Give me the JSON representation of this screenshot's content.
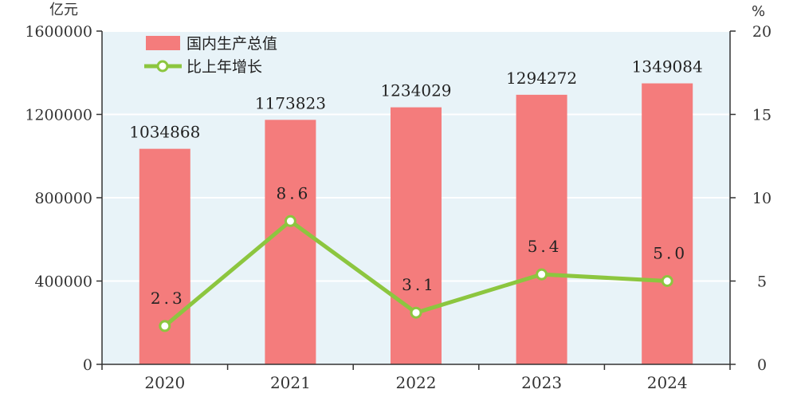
{
  "chart_data": {
    "type": "bar",
    "categories": [
      "2020",
      "2021",
      "2022",
      "2023",
      "2024"
    ],
    "series": [
      {
        "name": "国内生产总值",
        "type": "bar",
        "axis": "left",
        "values": [
          1034868,
          1173823,
          1234029,
          1294272,
          1349084
        ],
        "labels": [
          "1034868",
          "1173823",
          "1234029",
          "1294272",
          "1349084"
        ],
        "color": "#f47c7c"
      },
      {
        "name": "比上年增长",
        "type": "line",
        "axis": "right",
        "values": [
          2.3,
          8.6,
          3.1,
          5.4,
          5.0
        ],
        "labels": [
          "2.3",
          "8.6",
          "3.1",
          "5.4",
          "5.0"
        ],
        "color": "#8cc63f"
      }
    ],
    "left_axis": {
      "unit": "亿元",
      "ylim": [
        0,
        1600000
      ],
      "ticks": [
        "0",
        "400000",
        "800000",
        "1200000",
        "1600000"
      ]
    },
    "right_axis": {
      "unit": "%",
      "ylim": [
        0,
        20
      ],
      "ticks": [
        "0",
        "5",
        "10",
        "15",
        "20"
      ]
    },
    "grid": true,
    "legend_position": "top-left",
    "colors": {
      "plot_background": "#e8f3f8",
      "grid": "#ffffff",
      "bar": "#f47c7c",
      "line": "#8cc63f"
    }
  }
}
